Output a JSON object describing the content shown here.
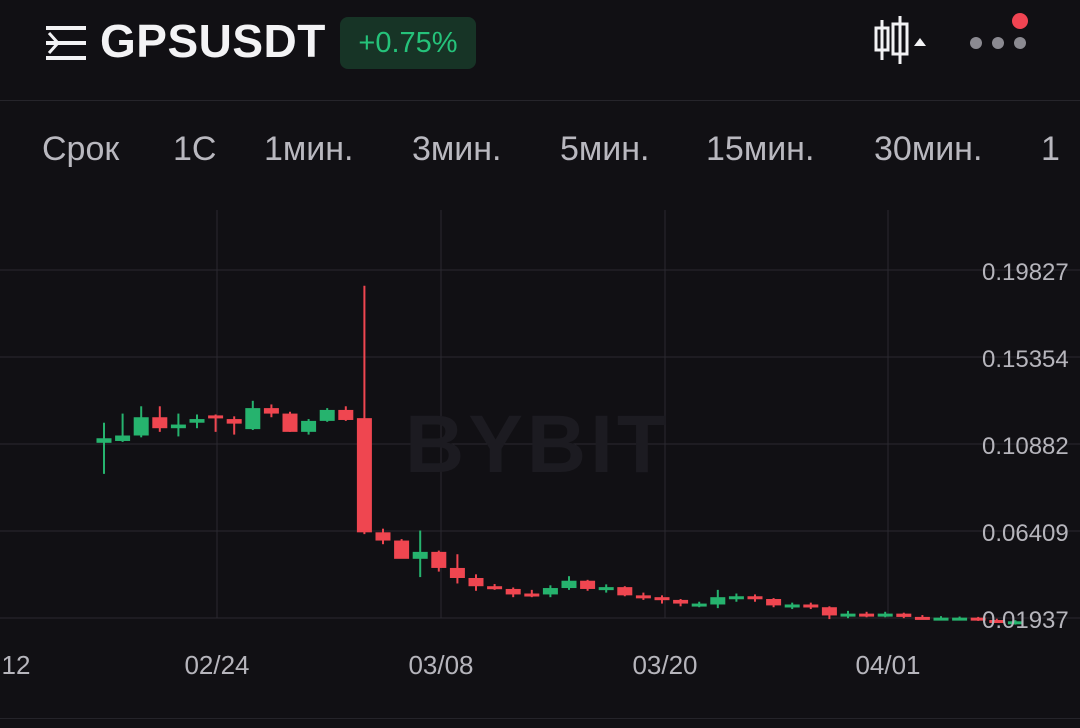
{
  "header": {
    "menu_icon": "list-menu-icon",
    "symbol": "GPSUSDT",
    "change": "+0.75%",
    "chart_type_icon": "candlestick-settings-icon",
    "more_icon": "more-dots-icon",
    "notification_color": "#f04452"
  },
  "tabs": [
    "Срок",
    "1С",
    "1мин.",
    "3мин.",
    "5мин.",
    "15мин.",
    "30мин.",
    "1"
  ],
  "colors": {
    "background": "#111014",
    "up": "#26b36e",
    "down": "#ef4650",
    "badge_background": "#173426",
    "badge_text": "#25c27a"
  },
  "chart_data": {
    "type": "candlestick",
    "watermark": "BYBIT",
    "y_ticks": [
      "0.19827",
      "0.15354",
      "0.10882",
      "0.06409",
      "0.01937"
    ],
    "x_ticks": [
      "12",
      "02/24",
      "03/08",
      "03/20",
      "04/01"
    ],
    "ylim": [
      0.0,
      0.2135
    ],
    "candles": [
      {
        "o": 0.1125,
        "h": 0.1235,
        "l": 0.0955,
        "c": 0.115,
        "dir": "up"
      },
      {
        "o": 0.1135,
        "h": 0.1285,
        "l": 0.113,
        "c": 0.1165,
        "dir": "up"
      },
      {
        "o": 0.1165,
        "h": 0.1325,
        "l": 0.1155,
        "c": 0.1265,
        "dir": "up"
      },
      {
        "o": 0.1265,
        "h": 0.1325,
        "l": 0.1185,
        "c": 0.1205,
        "dir": "down"
      },
      {
        "o": 0.1205,
        "h": 0.1285,
        "l": 0.116,
        "c": 0.1225,
        "dir": "up"
      },
      {
        "o": 0.1235,
        "h": 0.128,
        "l": 0.1205,
        "c": 0.1255,
        "dir": "up"
      },
      {
        "o": 0.1275,
        "h": 0.128,
        "l": 0.1185,
        "c": 0.127,
        "dir": "down"
      },
      {
        "o": 0.1255,
        "h": 0.127,
        "l": 0.117,
        "c": 0.123,
        "dir": "down"
      },
      {
        "o": 0.12,
        "h": 0.1355,
        "l": 0.1195,
        "c": 0.1315,
        "dir": "up"
      },
      {
        "o": 0.1315,
        "h": 0.1335,
        "l": 0.1265,
        "c": 0.1285,
        "dir": "down"
      },
      {
        "o": 0.1285,
        "h": 0.1295,
        "l": 0.1185,
        "c": 0.1185,
        "dir": "down"
      },
      {
        "o": 0.1185,
        "h": 0.1255,
        "l": 0.117,
        "c": 0.1245,
        "dir": "up"
      },
      {
        "o": 0.1245,
        "h": 0.1315,
        "l": 0.124,
        "c": 0.1305,
        "dir": "up"
      },
      {
        "o": 0.1305,
        "h": 0.1325,
        "l": 0.1245,
        "c": 0.125,
        "dir": "down"
      },
      {
        "o": 0.126,
        "h": 0.1985,
        "l": 0.0625,
        "c": 0.0635,
        "dir": "down"
      },
      {
        "o": 0.0635,
        "h": 0.0655,
        "l": 0.057,
        "c": 0.059,
        "dir": "down"
      },
      {
        "o": 0.059,
        "h": 0.0598,
        "l": 0.0495,
        "c": 0.049,
        "dir": "down"
      },
      {
        "o": 0.049,
        "h": 0.0645,
        "l": 0.039,
        "c": 0.0528,
        "dir": "up"
      },
      {
        "o": 0.0528,
        "h": 0.0535,
        "l": 0.042,
        "c": 0.044,
        "dir": "down"
      },
      {
        "o": 0.044,
        "h": 0.0515,
        "l": 0.0355,
        "c": 0.0385,
        "dir": "down"
      },
      {
        "o": 0.0385,
        "h": 0.0405,
        "l": 0.0315,
        "c": 0.034,
        "dir": "down"
      },
      {
        "o": 0.034,
        "h": 0.0352,
        "l": 0.032,
        "c": 0.0325,
        "dir": "down"
      },
      {
        "o": 0.0325,
        "h": 0.0333,
        "l": 0.028,
        "c": 0.0295,
        "dir": "down"
      },
      {
        "o": 0.0295,
        "h": 0.032,
        "l": 0.028,
        "c": 0.03,
        "dir": "down"
      },
      {
        "o": 0.0295,
        "h": 0.0345,
        "l": 0.028,
        "c": 0.033,
        "dir": "up"
      },
      {
        "o": 0.033,
        "h": 0.0395,
        "l": 0.032,
        "c": 0.037,
        "dir": "up"
      },
      {
        "o": 0.037,
        "h": 0.0375,
        "l": 0.0315,
        "c": 0.0325,
        "dir": "down"
      },
      {
        "o": 0.0325,
        "h": 0.035,
        "l": 0.0305,
        "c": 0.0335,
        "dir": "up"
      },
      {
        "o": 0.0335,
        "h": 0.034,
        "l": 0.0285,
        "c": 0.029,
        "dir": "down"
      },
      {
        "o": 0.029,
        "h": 0.0305,
        "l": 0.0265,
        "c": 0.028,
        "dir": "down"
      },
      {
        "o": 0.028,
        "h": 0.029,
        "l": 0.0245,
        "c": 0.0265,
        "dir": "down"
      },
      {
        "o": 0.0265,
        "h": 0.027,
        "l": 0.023,
        "c": 0.0245,
        "dir": "down"
      },
      {
        "o": 0.0245,
        "h": 0.0255,
        "l": 0.0225,
        "c": 0.024,
        "dir": "up"
      },
      {
        "o": 0.024,
        "h": 0.032,
        "l": 0.022,
        "c": 0.028,
        "dir": "up"
      },
      {
        "o": 0.0275,
        "h": 0.03,
        "l": 0.0255,
        "c": 0.0285,
        "dir": "up"
      },
      {
        "o": 0.0285,
        "h": 0.0295,
        "l": 0.0255,
        "c": 0.027,
        "dir": "down"
      },
      {
        "o": 0.027,
        "h": 0.0275,
        "l": 0.0225,
        "c": 0.0235,
        "dir": "down"
      },
      {
        "o": 0.0235,
        "h": 0.025,
        "l": 0.0215,
        "c": 0.024,
        "dir": "up"
      },
      {
        "o": 0.024,
        "h": 0.025,
        "l": 0.0215,
        "c": 0.0225,
        "dir": "down"
      },
      {
        "o": 0.0225,
        "h": 0.023,
        "l": 0.016,
        "c": 0.018,
        "dir": "down"
      },
      {
        "o": 0.018,
        "h": 0.0205,
        "l": 0.0165,
        "c": 0.019,
        "dir": "up"
      },
      {
        "o": 0.019,
        "h": 0.02,
        "l": 0.017,
        "c": 0.018,
        "dir": "down"
      },
      {
        "o": 0.018,
        "h": 0.02,
        "l": 0.017,
        "c": 0.019,
        "dir": "up"
      },
      {
        "o": 0.019,
        "h": 0.0195,
        "l": 0.0165,
        "c": 0.0172,
        "dir": "down"
      },
      {
        "o": 0.0172,
        "h": 0.0182,
        "l": 0.016,
        "c": 0.0168,
        "dir": "down"
      },
      {
        "o": 0.0168,
        "h": 0.0176,
        "l": 0.0158,
        "c": 0.0162,
        "dir": "up"
      },
      {
        "o": 0.0162,
        "h": 0.0174,
        "l": 0.0154,
        "c": 0.0168,
        "dir": "up"
      },
      {
        "o": 0.0168,
        "h": 0.0172,
        "l": 0.015,
        "c": 0.0155,
        "dir": "down"
      },
      {
        "o": 0.0155,
        "h": 0.0162,
        "l": 0.014,
        "c": 0.0148,
        "dir": "down"
      },
      {
        "o": 0.0148,
        "h": 0.0154,
        "l": 0.013,
        "c": 0.0142,
        "dir": "up"
      }
    ]
  }
}
